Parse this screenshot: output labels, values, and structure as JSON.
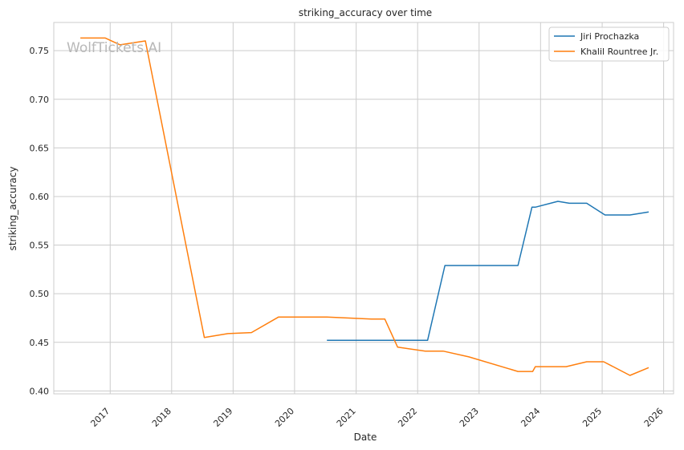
{
  "chart_data": {
    "type": "line",
    "title": "striking_accuracy over time",
    "xlabel": "Date",
    "ylabel": "striking_accuracy",
    "watermark": "WolfTickets.AI",
    "x_ticks": [
      "2017",
      "2018",
      "2019",
      "2020",
      "2021",
      "2022",
      "2023",
      "2024",
      "2025",
      "2026"
    ],
    "y_ticks": [
      "0.40",
      "0.45",
      "0.50",
      "0.55",
      "0.60",
      "0.65",
      "0.70",
      "0.75"
    ],
    "xlim": [
      "2016-02-01",
      "2026-03-01"
    ],
    "ylim": [
      0.397,
      0.779
    ],
    "grid": true,
    "legend_position": "top-right",
    "series": [
      {
        "name": "Jiri Prochazka",
        "color": "#1f77b4",
        "points": [
          [
            "2020-07-11",
            0.452
          ],
          [
            "2022-03-01",
            0.452
          ],
          [
            "2022-06-12",
            0.529
          ],
          [
            "2023-08-20",
            0.529
          ],
          [
            "2023-11-11",
            0.589
          ],
          [
            "2023-12-01",
            0.589
          ],
          [
            "2024-04-13",
            0.595
          ],
          [
            "2024-06-20",
            0.593
          ],
          [
            "2024-10-01",
            0.593
          ],
          [
            "2025-01-18",
            0.581
          ],
          [
            "2025-06-15",
            0.581
          ],
          [
            "2025-10-04",
            0.584
          ]
        ]
      },
      {
        "name": "Khalil Rountree Jr.",
        "color": "#ff7f0e",
        "points": [
          [
            "2016-07-08",
            0.763
          ],
          [
            "2016-12-03",
            0.763
          ],
          [
            "2017-03-01",
            0.756
          ],
          [
            "2017-07-29",
            0.76
          ],
          [
            "2018-07-14",
            0.455
          ],
          [
            "2018-12-01",
            0.459
          ],
          [
            "2019-04-20",
            0.46
          ],
          [
            "2019-09-28",
            0.476
          ],
          [
            "2020-07-11",
            0.476
          ],
          [
            "2021-04-01",
            0.474
          ],
          [
            "2021-06-20",
            0.474
          ],
          [
            "2021-09-04",
            0.445
          ],
          [
            "2022-02-15",
            0.441
          ],
          [
            "2022-06-01",
            0.441
          ],
          [
            "2022-11-01",
            0.435
          ],
          [
            "2023-08-20",
            0.42
          ],
          [
            "2023-11-15",
            0.42
          ],
          [
            "2023-12-01",
            0.425
          ],
          [
            "2024-06-01",
            0.425
          ],
          [
            "2024-10-01",
            0.43
          ],
          [
            "2025-01-10",
            0.43
          ],
          [
            "2025-06-15",
            0.416
          ],
          [
            "2025-10-04",
            0.424
          ]
        ]
      }
    ]
  }
}
